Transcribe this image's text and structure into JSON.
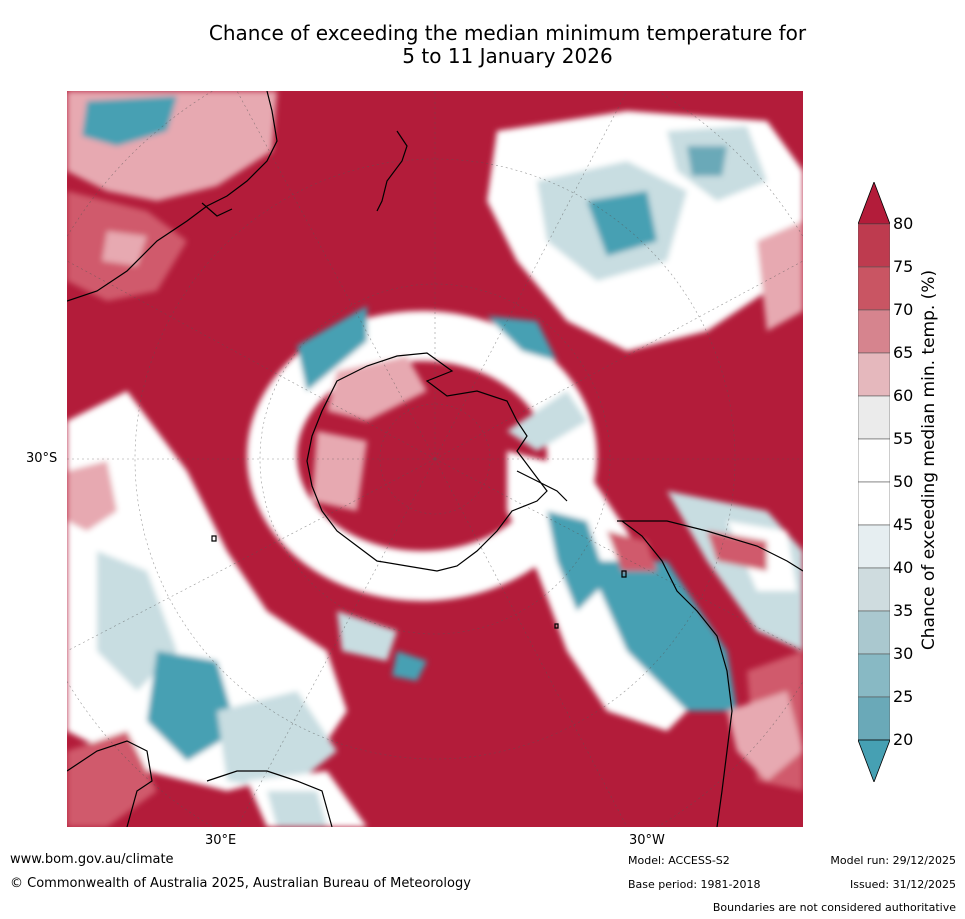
{
  "title": {
    "line1": "Chance of exceeding the median minimum temperature for",
    "line2": "5 to 11 January 2026"
  },
  "map": {
    "type": "south-polar-stereographic probability map",
    "lat_label": "30°S",
    "lon_labels": [
      "30°E",
      "30°W"
    ],
    "colors": {
      "high": "#b31c3a",
      "mid_high": "#d05a6c",
      "light_red": "#e7a9b1",
      "neutral": "#ffffff",
      "light_blue": "#c8dde1",
      "blue": "#46a0b3"
    }
  },
  "colorbar": {
    "title": "Chance of exceeding median min. temp. (%)",
    "levels": [
      "80",
      "75",
      "70",
      "65",
      "60",
      "55",
      "50",
      "45",
      "40",
      "35",
      "30",
      "25",
      "20"
    ],
    "colors": [
      "#b31c3a",
      "#be3b4f",
      "#c95563",
      "#d6848e",
      "#e5b8bd",
      "#ebebeb",
      "#ffffff",
      "#ffffff",
      "#e6eef1",
      "#cfdcdf",
      "#aac8cf",
      "#88b9c4",
      "#6aa9b8",
      "#46a0b3"
    ]
  },
  "footer": {
    "url": "www.bom.gov.au/climate",
    "copyright": "© Commonwealth of Australia 2025, Australian Bureau of Meteorology",
    "model": "Model: ACCESS-S2",
    "base_period": "Base period: 1981-2018",
    "model_run": "Model run: 29/12/2025",
    "issued": "Issued: 31/12/2025",
    "disclaimer": "Boundaries are not considered authoritative"
  }
}
